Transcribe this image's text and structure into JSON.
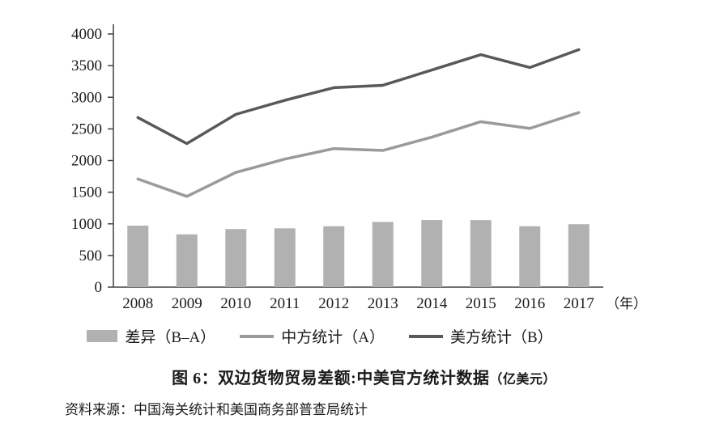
{
  "chart_data": {
    "type": "combo-bar-line",
    "categories": [
      "2008",
      "2009",
      "2010",
      "2011",
      "2012",
      "2013",
      "2014",
      "2015",
      "2016",
      "2017"
    ],
    "x_suffix": "（年）",
    "ylim": [
      0,
      4000
    ],
    "ytick_step": 500,
    "yticks": [
      0,
      500,
      1000,
      1500,
      2000,
      2500,
      3000,
      3500,
      4000
    ],
    "grid": false,
    "legend_position": "bottom",
    "bar_series": {
      "name": "差异（B–A）",
      "values": [
        971,
        834,
        917,
        929,
        962,
        1030,
        1060,
        1059,
        962,
        994
      ],
      "color": "#b1b1b1"
    },
    "line_series": [
      {
        "name": "中方统计（A）",
        "values": [
          1709,
          1434,
          1813,
          2023,
          2189,
          2159,
          2370,
          2614,
          2508,
          2758
        ],
        "color": "#9a9a9a"
      },
      {
        "name": "美方统计（B）",
        "values": [
          2680,
          2268,
          2730,
          2952,
          3151,
          3189,
          3430,
          3673,
          3470,
          3752
        ],
        "color": "#595959"
      }
    ],
    "title_main": "图 6：双边货物贸易差额:中美官方统计数据",
    "title_unit": "（亿美元）",
    "source": "资料来源：中国海关统计和美国商务部普查局统计",
    "axis_color": "#404040",
    "text_color": "#1a1a1a"
  }
}
